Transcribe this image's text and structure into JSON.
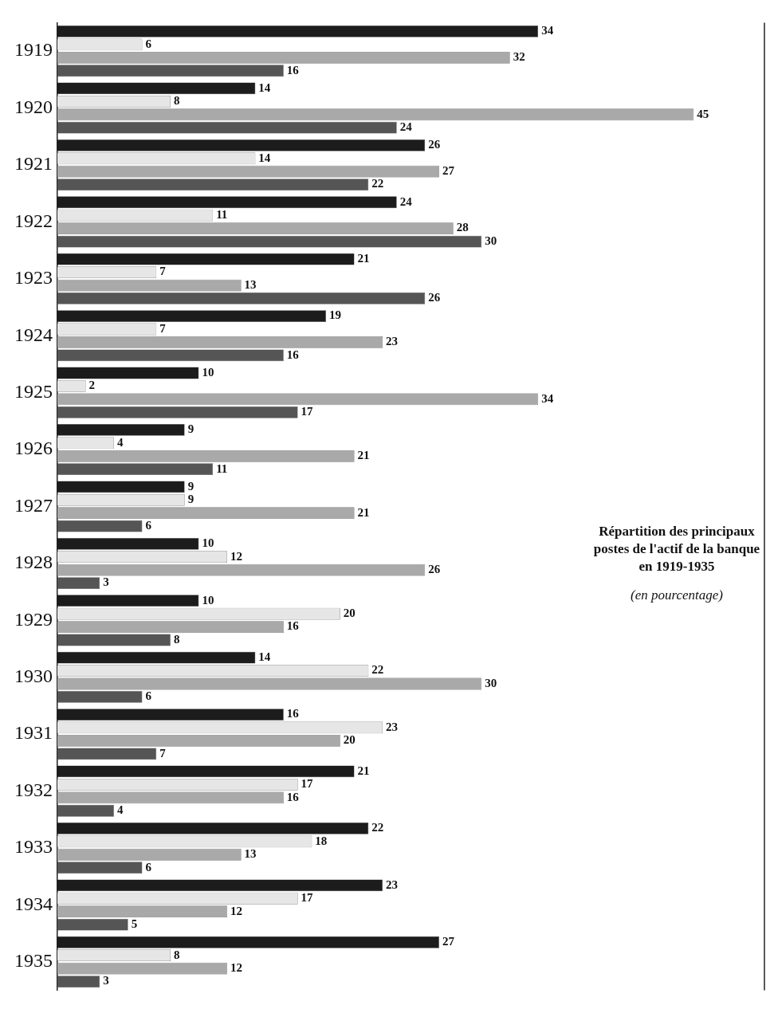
{
  "chart_data": {
    "type": "bar",
    "orientation": "horizontal",
    "title": "Répartition des principaux postes de l'actif de la banque en 1919-1935",
    "subtitle": "(en pourcentage)",
    "categories": [
      "1919",
      "1920",
      "1921",
      "1922",
      "1923",
      "1924",
      "1925",
      "1926",
      "1927",
      "1928",
      "1929",
      "1930",
      "1931",
      "1932",
      "1933",
      "1934",
      "1935"
    ],
    "series": [
      {
        "color": "#1c1c1c",
        "values": [
          34,
          14,
          26,
          24,
          21,
          19,
          10,
          9,
          9,
          10,
          10,
          14,
          16,
          21,
          22,
          23,
          27
        ]
      },
      {
        "color": "#e6e6e6",
        "values": [
          6,
          8,
          14,
          11,
          7,
          7,
          2,
          4,
          9,
          12,
          20,
          22,
          23,
          17,
          18,
          17,
          8
        ]
      },
      {
        "color": "#a9a9a9",
        "values": [
          32,
          45,
          27,
          28,
          13,
          23,
          34,
          21,
          21,
          26,
          16,
          30,
          20,
          16,
          13,
          12,
          12
        ]
      },
      {
        "color": "#555555",
        "values": [
          16,
          24,
          22,
          30,
          26,
          16,
          17,
          11,
          6,
          3,
          8,
          6,
          7,
          4,
          6,
          5,
          3
        ]
      }
    ],
    "xlim": [
      0,
      50
    ],
    "data_labels": true,
    "legend": false
  }
}
